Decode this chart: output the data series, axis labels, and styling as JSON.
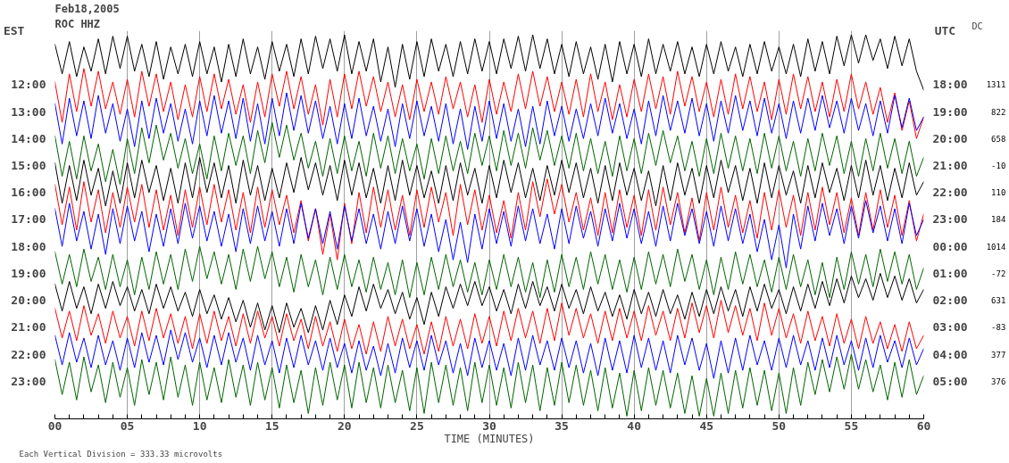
{
  "chart_data": [
    {
      "type": "line",
      "title": "Feb18,2005",
      "subtitle": "ROC HHZ",
      "xlabel": "TIME (MINUTES)",
      "ylabel": "EST",
      "y2label": "UTC",
      "annotations": [
        "Each Vertical Division = 333.33 microvolts"
      ],
      "grid": "x",
      "xlim": [
        0,
        60
      ],
      "xticks": [
        {
          "value": 0,
          "label": "00"
        },
        {
          "value": 1,
          "label": null
        },
        {
          "value": 2,
          "label": null
        },
        {
          "value": 3,
          "label": null
        },
        {
          "value": 4,
          "label": null
        },
        {
          "value": 5,
          "label": "05"
        },
        {
          "value": 6,
          "label": null
        },
        {
          "value": 7,
          "label": null
        },
        {
          "value": 8,
          "label": null
        },
        {
          "value": 9,
          "label": null
        },
        {
          "value": 10,
          "label": "10"
        },
        {
          "value": 11,
          "label": null
        },
        {
          "value": 12,
          "label": null
        },
        {
          "value": 13,
          "label": null
        },
        {
          "value": 14,
          "label": null
        },
        {
          "value": 15,
          "label": "15"
        },
        {
          "value": 16,
          "label": null
        },
        {
          "value": 17,
          "label": null
        },
        {
          "value": 18,
          "label": null
        },
        {
          "value": 19,
          "label": null
        },
        {
          "value": 20,
          "label": "20"
        },
        {
          "value": 21,
          "label": null
        },
        {
          "value": 22,
          "label": null
        },
        {
          "value": 23,
          "label": null
        },
        {
          "value": 24,
          "label": null
        },
        {
          "value": 25,
          "label": "25"
        },
        {
          "value": 26,
          "label": null
        },
        {
          "value": 27,
          "label": null
        },
        {
          "value": 28,
          "label": null
        },
        {
          "value": 29,
          "label": null
        },
        {
          "value": 30,
          "label": "30"
        },
        {
          "value": 31,
          "label": null
        },
        {
          "value": 32,
          "label": null
        },
        {
          "value": 33,
          "label": null
        },
        {
          "value": 34,
          "label": null
        },
        {
          "value": 35,
          "label": "35"
        },
        {
          "value": 36,
          "label": null
        },
        {
          "value": 37,
          "label": null
        },
        {
          "value": 38,
          "label": null
        },
        {
          "value": 39,
          "label": null
        },
        {
          "value": 40,
          "label": "40"
        },
        {
          "value": 41,
          "label": null
        },
        {
          "value": 42,
          "label": null
        },
        {
          "value": 43,
          "label": null
        },
        {
          "value": 44,
          "label": null
        },
        {
          "value": 45,
          "label": "45"
        },
        {
          "value": 46,
          "label": null
        },
        {
          "value": 47,
          "label": null
        },
        {
          "value": 48,
          "label": null
        },
        {
          "value": 49,
          "label": null
        },
        {
          "value": 50,
          "label": "50"
        },
        {
          "value": 51,
          "label": null
        },
        {
          "value": 52,
          "label": null
        },
        {
          "value": 53,
          "label": null
        },
        {
          "value": 54,
          "label": null
        },
        {
          "value": 55,
          "label": "55"
        },
        {
          "value": 56,
          "label": null
        },
        {
          "value": 57,
          "label": null
        },
        {
          "value": 58,
          "label": null
        },
        {
          "value": 59,
          "label": null
        },
        {
          "value": 60,
          "label": "60"
        }
      ],
      "ylim": [
        24.4,
        10.0
      ],
      "yticks": [
        {
          "value": 12,
          "label": "12:00"
        },
        {
          "value": 13,
          "label": "13:00"
        },
        {
          "value": 14,
          "label": "14:00"
        },
        {
          "value": 15,
          "label": "15:00"
        },
        {
          "value": 16,
          "label": "16:00"
        },
        {
          "value": 17,
          "label": "17:00"
        },
        {
          "value": 18,
          "label": "18:00"
        },
        {
          "value": 19,
          "label": "19:00"
        },
        {
          "value": 20,
          "label": "20:00"
        },
        {
          "value": 21,
          "label": "21:00"
        },
        {
          "value": 22,
          "label": "22:00"
        },
        {
          "value": 23,
          "label": "23:00"
        }
      ],
      "y2lim": [
        "2005-02-19T06:24",
        "2005-02-18T16:00"
      ],
      "y2ticks": [
        {
          "value": "2005-02-18T18:00",
          "label": "18:00"
        },
        {
          "value": "2005-02-18T19:00",
          "label": "19:00"
        },
        {
          "value": "2005-02-18T20:00",
          "label": "20:00"
        },
        {
          "value": "2005-02-18T21:00",
          "label": "21:00"
        },
        {
          "value": "2005-02-18T22:00",
          "label": "22:00"
        },
        {
          "value": "2005-02-18T23:00",
          "label": "23:00"
        },
        {
          "value": "2005-02-19T00:00",
          "label": "00:00"
        },
        {
          "value": "2005-02-19T01:00",
          "label": "01:00"
        },
        {
          "value": "2005-02-19T02:00",
          "label": "02:00"
        },
        {
          "value": "2005-02-19T03:00",
          "label": "03:00"
        },
        {
          "value": "2005-02-19T04:00",
          "label": "04:00"
        },
        {
          "value": "2005-02-19T05:00",
          "label": "05:00"
        }
      ],
      "x": [
        0,
        0.5,
        1,
        1.5,
        2,
        2.5,
        3,
        3.5,
        4,
        4.5,
        5,
        5.5,
        6,
        6.5,
        7,
        7.5,
        8,
        8.5,
        9,
        9.5,
        10,
        10.5,
        11,
        11.5,
        12,
        12.5,
        13,
        13.5,
        14,
        14.5,
        15,
        15.5,
        16,
        16.5,
        17,
        17.5,
        18,
        18.5,
        19,
        19.5,
        20,
        20.5,
        21,
        21.5,
        22,
        22.5,
        23,
        23.5,
        24,
        24.5,
        25,
        25.5,
        26,
        26.5,
        27,
        27.5,
        28,
        28.5,
        29,
        29.5,
        30,
        30.5,
        31,
        31.5,
        32,
        32.5,
        33,
        33.5,
        34,
        34.5,
        35,
        35.5,
        36,
        36.5,
        37,
        37.5,
        38,
        38.5,
        39,
        39.5,
        40,
        40.5,
        41,
        41.5,
        42,
        42.5,
        43,
        43.5,
        44,
        44.5,
        45,
        45.5,
        46,
        46.5,
        47,
        47.5,
        48,
        48.5,
        49,
        49.5,
        50,
        50.5,
        51,
        51.5,
        52,
        52.5,
        53,
        53.5,
        54,
        54.5,
        55,
        55.5,
        56,
        56.5,
        57,
        57.5,
        58,
        58.5,
        59,
        59.5,
        60
      ],
      "series": [
        {
          "color": "#000000",
          "values": [
            10.5,
            11.6,
            10.4,
            11.7,
            10.6,
            11.5,
            10.3,
            11.6,
            10.2,
            11.4,
            10.2,
            11.5,
            10.5,
            11.7,
            10.4,
            11.8,
            10.6,
            11.6,
            10.5,
            11.7,
            10.4,
            11.6,
            10.6,
            11.9,
            10.5,
            11.7,
            10.3,
            11.6,
            10.6,
            11.8,
            10.4,
            11.5,
            10.5,
            11.7,
            10.3,
            11.6,
            10.2,
            11.4,
            10.3,
            11.5,
            10.15,
            11.6,
            10.4,
            11.5,
            10.3,
            11.9,
            10.6,
            12.1,
            10.5,
            11.8,
            10.4,
            11.7,
            10.3,
            11.5,
            10.5,
            11.7,
            10.4,
            11.6,
            10.3,
            11.5,
            10.4,
            11.6,
            10.3,
            11.4,
            10.2,
            11.5,
            10.15,
            11.4,
            10.3,
            11.6,
            10.5,
            11.7,
            10.4,
            11.6,
            10.6,
            11.8,
            10.5,
            11.9,
            10.4,
            11.6,
            10.5,
            11.7,
            10.3,
            11.6,
            10.5,
            11.5,
            10.4,
            11.6,
            10.6,
            11.7,
            10.5,
            11.6,
            10.4,
            11.5,
            10.6,
            11.7,
            10.5,
            11.6,
            10.4,
            11.5,
            10.6,
            11.6,
            10.5,
            11.7,
            10.3,
            11.5,
            10.4,
            11.6,
            10.2,
            11.3,
            10.15,
            11.2,
            10.15,
            11.1,
            10.3,
            11.4,
            10.2,
            11.3,
            10.3,
            11.5,
            12.2
          ]
        },
        {
          "color": "#ff0000",
          "values": [
            11.9,
            13.4,
            11.6,
            13.0,
            11.4,
            12.8,
            11.5,
            12.9,
            11.9,
            13.1,
            11.8,
            13.2,
            11.5,
            12.8,
            11.6,
            13.0,
            11.9,
            13.3,
            12.0,
            13.2,
            11.7,
            13.0,
            11.6,
            12.9,
            11.8,
            13.1,
            12.0,
            13.4,
            11.9,
            13.2,
            11.6,
            12.8,
            11.5,
            12.9,
            11.7,
            13.1,
            12.0,
            13.5,
            11.8,
            13.2,
            11.6,
            12.9,
            11.5,
            12.8,
            11.7,
            13.0,
            11.9,
            13.2,
            12.0,
            13.3,
            11.8,
            13.0,
            11.9,
            13.1,
            11.7,
            12.9,
            11.9,
            13.2,
            12.0,
            13.4,
            11.8,
            13.1,
            11.9,
            13.0,
            11.6,
            12.9,
            11.5,
            12.8,
            11.7,
            13.0,
            11.9,
            13.1,
            11.8,
            13.2,
            11.6,
            13.0,
            11.9,
            13.3,
            12.0,
            13.2,
            11.8,
            13.0,
            11.6,
            12.9,
            11.7,
            13.1,
            11.5,
            12.8,
            11.7,
            13.0,
            11.9,
            13.2,
            11.8,
            13.1,
            11.6,
            12.9,
            11.7,
            13.0,
            11.9,
            13.3,
            11.8,
            13.1,
            11.6,
            12.9,
            11.7,
            13.0,
            11.9,
            13.2,
            11.8,
            13.0,
            11.6,
            12.9,
            11.9,
            13.1,
            12.1,
            13.4,
            12.3,
            13.7,
            12.6,
            14.0,
            13.2
          ]
        },
        {
          "color": "#0000ff",
          "values": [
            12.7,
            14.2,
            12.5,
            13.9,
            12.6,
            14.0,
            12.4,
            13.8,
            12.7,
            14.1,
            12.9,
            14.3,
            12.6,
            14.0,
            12.5,
            13.8,
            12.7,
            14.1,
            12.9,
            14.2,
            12.6,
            13.9,
            12.4,
            13.8,
            12.6,
            14.0,
            12.5,
            14.1,
            12.7,
            14.2,
            12.5,
            13.9,
            12.3,
            13.7,
            12.4,
            13.8,
            12.6,
            14.0,
            12.8,
            14.2,
            12.7,
            14.0,
            12.5,
            13.9,
            12.8,
            14.1,
            12.9,
            14.3,
            12.7,
            14.0,
            12.6,
            13.9,
            12.8,
            14.1,
            12.7,
            14.2,
            12.9,
            14.4,
            12.8,
            14.1,
            12.6,
            14.0,
            12.7,
            14.1,
            12.9,
            14.3,
            12.8,
            14.2,
            12.6,
            13.9,
            12.8,
            14.1,
            12.9,
            14.0,
            12.7,
            13.9,
            12.5,
            13.8,
            12.7,
            14.0,
            12.9,
            14.2,
            12.6,
            13.9,
            12.4,
            13.7,
            12.6,
            13.8,
            12.5,
            13.9,
            12.7,
            14.1,
            12.6,
            13.8,
            12.4,
            13.7,
            12.6,
            13.9,
            12.5,
            13.8,
            12.7,
            14.0,
            12.6,
            13.8,
            12.5,
            13.7,
            12.4,
            13.6,
            12.6,
            13.8,
            12.5,
            13.7,
            12.7,
            13.9,
            12.6,
            13.8,
            12.4,
            13.6,
            12.5,
            13.7,
            13.2
          ]
        },
        {
          "color": "#006400",
          "values": [
            13.9,
            15.4,
            14.1,
            15.5,
            13.9,
            15.2,
            14.2,
            15.6,
            14.4,
            15.7,
            14.0,
            15.3,
            13.6,
            14.9,
            13.5,
            14.8,
            13.8,
            15.1,
            14.0,
            15.3,
            14.2,
            15.5,
            13.9,
            15.2,
            13.8,
            15.0,
            13.9,
            15.3,
            13.7,
            14.9,
            13.4,
            14.7,
            13.5,
            14.8,
            13.8,
            15.1,
            14.1,
            15.4,
            14.0,
            15.3,
            13.9,
            15.2,
            14.1,
            15.4,
            13.8,
            15.1,
            13.9,
            15.3,
            14.0,
            15.2,
            14.2,
            15.5,
            14.0,
            15.3,
            13.9,
            15.2,
            14.1,
            15.3,
            13.8,
            15.0,
            13.9,
            15.2,
            13.7,
            15.0,
            13.8,
            15.1,
            13.6,
            14.8,
            13.7,
            15.0,
            13.9,
            15.1,
            13.8,
            15.2,
            14.0,
            15.3,
            14.1,
            15.4,
            13.9,
            15.2,
            14.0,
            15.3,
            13.8,
            15.0,
            13.7,
            14.9,
            13.9,
            15.2,
            14.1,
            15.4,
            14.0,
            15.3,
            13.8,
            15.1,
            13.9,
            15.2,
            14.0,
            15.3,
            13.8,
            15.1,
            13.9,
            15.2,
            14.1,
            15.4,
            14.0,
            15.2,
            13.8,
            15.0,
            13.9,
            15.3,
            14.1,
            15.4,
            14.0,
            15.2,
            13.8,
            15.1,
            14.0,
            15.3,
            14.1,
            15.4,
            14.7
          ]
        },
        {
          "color": "#000000",
          "values": [
            14.9,
            16.4,
            15.0,
            16.3,
            14.8,
            16.1,
            15.1,
            16.5,
            15.2,
            16.4,
            14.9,
            16.2,
            14.8,
            16.0,
            15.0,
            16.3,
            15.1,
            16.4,
            14.9,
            16.2,
            14.7,
            16.0,
            14.9,
            16.2,
            15.0,
            16.4,
            14.8,
            16.1,
            15.0,
            16.3,
            15.1,
            16.2,
            14.9,
            16.0,
            14.7,
            15.9,
            14.9,
            16.1,
            15.0,
            16.3,
            14.8,
            16.1,
            14.9,
            16.2,
            15.1,
            16.4,
            15.0,
            16.3,
            14.8,
            16.1,
            15.0,
            16.2,
            15.2,
            16.4,
            15.0,
            16.3,
            14.9,
            16.1,
            15.1,
            16.4,
            15.0,
            16.2,
            14.8,
            16.0,
            14.9,
            16.2,
            15.1,
            16.3,
            15.0,
            16.1,
            14.8,
            16.0,
            14.9,
            16.2,
            15.1,
            16.4,
            15.0,
            16.3,
            14.9,
            16.1,
            15.1,
            16.3,
            15.2,
            16.5,
            15.0,
            16.3,
            14.9,
            16.1,
            15.1,
            16.4,
            15.0,
            16.2,
            14.8,
            16.0,
            15.0,
            16.3,
            15.1,
            16.4,
            14.9,
            16.2,
            15.0,
            16.1,
            15.2,
            16.4,
            15.0,
            16.2,
            14.9,
            16.0,
            15.1,
            16.3,
            15.0,
            16.2,
            14.8,
            16.1,
            15.0,
            16.3,
            15.1,
            16.2,
            14.9,
            16.1,
            15.6
          ]
        },
        {
          "color": "#ff0000",
          "values": [
            15.7,
            17.2,
            15.8,
            17.4,
            15.6,
            17.1,
            15.9,
            17.5,
            16.0,
            17.3,
            15.8,
            17.1,
            15.7,
            17.3,
            15.9,
            17.4,
            16.1,
            17.6,
            15.9,
            17.3,
            15.8,
            17.2,
            15.7,
            17.1,
            15.9,
            17.4,
            16.0,
            17.5,
            15.8,
            17.3,
            15.9,
            17.2,
            16.1,
            17.5,
            16.3,
            17.8,
            16.6,
            18.3,
            16.8,
            18.5,
            16.4,
            17.9,
            16.0,
            17.5,
            15.8,
            17.3,
            15.9,
            17.4,
            16.1,
            17.6,
            15.9,
            17.3,
            15.8,
            17.1,
            16.0,
            17.6,
            15.7,
            17.2,
            15.9,
            17.4,
            16.1,
            17.5,
            16.3,
            17.7,
            16.0,
            17.4,
            15.6,
            16.9,
            15.5,
            16.8,
            15.7,
            17.1,
            16.0,
            17.4,
            16.2,
            17.6,
            16.0,
            17.5,
            15.9,
            17.3,
            16.1,
            17.6,
            15.9,
            17.4,
            15.8,
            17.2,
            16.0,
            17.5,
            16.2,
            17.8,
            16.0,
            17.4,
            15.8,
            17.3,
            16.1,
            17.5,
            16.3,
            17.7,
            16.0,
            17.4,
            15.9,
            17.3,
            16.1,
            17.6,
            16.0,
            17.4,
            15.8,
            17.2,
            16.0,
            17.5,
            16.2,
            17.6,
            16.0,
            17.4,
            15.9,
            17.3,
            16.1,
            17.6,
            16.3,
            17.8,
            16.8
          ]
        },
        {
          "color": "#0000ff",
          "values": [
            16.6,
            18.0,
            16.4,
            17.8,
            16.7,
            18.1,
            16.8,
            18.3,
            16.6,
            17.9,
            16.5,
            17.8,
            16.7,
            18.2,
            16.8,
            18.0,
            16.6,
            17.9,
            16.4,
            17.7,
            16.5,
            17.8,
            16.7,
            18.0,
            16.8,
            18.2,
            16.6,
            17.9,
            16.5,
            17.8,
            16.7,
            18.0,
            16.6,
            17.9,
            16.4,
            17.7,
            16.6,
            17.9,
            16.7,
            18.1,
            16.5,
            17.8,
            16.6,
            17.9,
            16.8,
            18.1,
            16.7,
            17.9,
            16.5,
            17.8,
            16.6,
            18.0,
            16.8,
            18.2,
            17.0,
            18.5,
            17.1,
            18.6,
            16.8,
            18.1,
            16.6,
            17.9,
            16.7,
            18.0,
            16.5,
            17.8,
            16.6,
            17.9,
            16.8,
            18.1,
            16.6,
            17.9,
            16.5,
            17.7,
            16.7,
            18.0,
            16.6,
            17.8,
            16.4,
            17.7,
            16.6,
            17.9,
            16.7,
            18.0,
            16.5,
            17.8,
            16.4,
            17.6,
            16.6,
            17.9,
            16.7,
            18.0,
            16.5,
            17.8,
            16.6,
            17.9,
            16.8,
            18.2,
            17.0,
            18.5,
            17.2,
            18.8,
            16.8,
            18.1,
            16.5,
            17.8,
            16.4,
            17.6,
            16.6,
            17.9,
            16.5,
            17.7,
            16.3,
            17.5,
            16.5,
            17.8,
            16.6,
            17.9,
            16.4,
            17.6,
            17.0
          ]
        },
        {
          "color": "#006400",
          "values": [
            18.2,
            19.4,
            18.3,
            19.5,
            18.1,
            19.3,
            18.4,
            19.6,
            18.3,
            19.5,
            18.5,
            19.8,
            18.4,
            19.6,
            18.2,
            19.4,
            18.3,
            19.6,
            18.1,
            19.3,
            18.0,
            19.2,
            18.2,
            19.4,
            18.3,
            19.6,
            18.1,
            19.3,
            18.0,
            19.2,
            18.2,
            19.5,
            18.4,
            19.7,
            18.3,
            19.5,
            18.5,
            19.8,
            18.4,
            19.6,
            18.3,
            19.5,
            18.5,
            19.7,
            18.4,
            19.6,
            18.6,
            19.8,
            18.5,
            19.9,
            18.6,
            19.8,
            18.4,
            19.6,
            18.3,
            19.5,
            18.5,
            19.7,
            18.6,
            19.8,
            18.5,
            19.6,
            18.3,
            19.5,
            18.4,
            19.7,
            18.6,
            19.9,
            18.5,
            19.7,
            18.3,
            19.5,
            18.4,
            19.6,
            18.2,
            19.4,
            18.3,
            19.6,
            18.5,
            19.7,
            18.4,
            19.6,
            18.2,
            19.4,
            18.3,
            19.5,
            18.1,
            19.3,
            18.3,
            19.6,
            18.5,
            19.8,
            18.4,
            19.6,
            18.2,
            19.4,
            18.3,
            19.5,
            18.5,
            19.7,
            18.4,
            19.6,
            18.3,
            19.5,
            18.5,
            19.8,
            18.6,
            19.9,
            18.4,
            19.6,
            18.2,
            19.4,
            18.3,
            19.5,
            18.1,
            19.3,
            18.2,
            19.4,
            18.3,
            19.6,
            18.8
          ]
        },
        {
          "color": "#000000",
          "values": [
            19.4,
            20.4,
            19.3,
            20.3,
            19.5,
            20.5,
            19.4,
            20.3,
            19.3,
            20.2,
            19.5,
            20.4,
            19.6,
            20.5,
            19.4,
            20.3,
            19.5,
            20.4,
            19.7,
            20.6,
            19.6,
            20.5,
            19.8,
            20.7,
            19.9,
            20.8,
            20.0,
            21.0,
            20.1,
            21.1,
            20.2,
            21.2,
            20.1,
            21.0,
            20.3,
            21.2,
            20.2,
            21.1,
            20.0,
            20.9,
            19.8,
            20.6,
            19.5,
            20.4,
            19.4,
            20.3,
            19.6,
            20.5,
            19.7,
            20.7,
            19.9,
            20.9,
            19.7,
            20.6,
            19.5,
            20.3,
            19.4,
            20.2,
            19.3,
            20.2,
            19.5,
            20.4,
            19.6,
            20.5,
            19.4,
            20.3,
            19.3,
            20.2,
            19.5,
            20.4,
            19.4,
            20.3,
            19.6,
            20.5,
            19.5,
            20.4,
            19.7,
            20.6,
            19.8,
            20.7,
            19.6,
            20.5,
            19.7,
            20.6,
            19.6,
            20.5,
            19.8,
            20.7,
            19.7,
            20.6,
            19.6,
            20.5,
            19.5,
            20.4,
            19.6,
            20.6,
            19.5,
            20.4,
            19.4,
            20.3,
            19.6,
            20.5,
            19.5,
            20.4,
            19.4,
            20.3,
            19.3,
            20.2,
            19.2,
            20.1,
            19.1,
            19.9,
            19.2,
            20.0,
            19.0,
            19.9,
            19.1,
            20.0,
            19.2,
            20.1,
            19.6
          ]
        },
        {
          "color": "#ff0000",
          "values": [
            20.3,
            21.4,
            20.4,
            21.5,
            20.2,
            21.3,
            20.5,
            21.6,
            20.4,
            21.4,
            20.6,
            21.7,
            20.4,
            21.5,
            20.3,
            21.4,
            20.5,
            21.6,
            20.6,
            21.8,
            20.5,
            21.6,
            20.4,
            21.5,
            20.6,
            21.7,
            20.5,
            21.6,
            20.4,
            21.4,
            20.6,
            21.7,
            20.5,
            21.5,
            20.7,
            21.8,
            20.6,
            21.7,
            20.8,
            21.9,
            20.7,
            21.8,
            20.9,
            22.0,
            20.8,
            21.9,
            20.6,
            21.7,
            20.7,
            21.8,
            20.9,
            22.0,
            20.8,
            21.9,
            20.6,
            21.7,
            20.7,
            21.8,
            20.5,
            21.6,
            20.6,
            21.7,
            20.4,
            21.5,
            20.3,
            21.4,
            20.4,
            21.6,
            20.3,
            21.5,
            20.1,
            21.3,
            20.3,
            21.4,
            20.5,
            21.6,
            20.4,
            21.5,
            20.3,
            21.4,
            20.4,
            21.5,
            20.2,
            21.3,
            20.4,
            21.5,
            20.3,
            21.4,
            20.1,
            21.2,
            20.2,
            21.4,
            20.0,
            21.2,
            20.2,
            21.3,
            20.3,
            21.5,
            20.1,
            21.3,
            20.3,
            21.4,
            20.5,
            21.6,
            20.4,
            21.5,
            20.6,
            21.7,
            20.5,
            21.6,
            20.7,
            21.8,
            20.6,
            21.6,
            20.8,
            21.8,
            20.9,
            21.9,
            20.8,
            21.8,
            21.3
          ]
        },
        {
          "color": "#0000ff",
          "values": [
            21.3,
            22.4,
            21.2,
            22.3,
            21.4,
            22.5,
            21.3,
            22.4,
            21.5,
            22.6,
            21.4,
            22.5,
            21.2,
            22.3,
            21.3,
            22.4,
            21.1,
            22.2,
            21.2,
            22.3,
            21.4,
            22.5,
            21.3,
            22.4,
            21.2,
            22.3,
            21.4,
            22.6,
            21.3,
            22.4,
            21.5,
            22.7,
            21.4,
            22.5,
            21.3,
            22.4,
            21.5,
            22.6,
            21.4,
            22.5,
            21.6,
            22.7,
            21.5,
            22.6,
            21.7,
            22.8,
            21.6,
            22.7,
            21.4,
            22.5,
            21.5,
            22.6,
            21.3,
            22.4,
            21.5,
            22.7,
            21.6,
            22.8,
            21.4,
            22.5,
            21.5,
            22.6,
            21.6,
            22.8,
            21.4,
            22.6,
            21.3,
            22.4,
            21.5,
            22.6,
            21.4,
            22.5,
            21.5,
            22.7,
            21.6,
            22.8,
            21.4,
            22.6,
            21.5,
            22.7,
            21.3,
            22.5,
            21.4,
            22.6,
            21.5,
            22.7,
            21.3,
            22.4,
            21.4,
            22.6,
            21.6,
            22.9,
            21.5,
            22.7,
            21.4,
            22.6,
            21.3,
            22.4,
            21.5,
            22.6,
            21.4,
            22.5,
            21.3,
            22.4,
            21.5,
            22.6,
            21.4,
            22.5,
            21.3,
            22.4,
            21.5,
            22.6,
            21.4,
            22.5,
            21.3,
            22.3,
            21.5,
            22.5,
            21.4,
            22.4,
            21.8
          ]
        },
        {
          "color": "#006400",
          "values": [
            22.2,
            23.5,
            22.3,
            23.7,
            22.1,
            23.4,
            22.4,
            23.8,
            22.3,
            23.6,
            22.5,
            23.9,
            22.2,
            23.5,
            22.3,
            23.7,
            22.1,
            23.6,
            22.4,
            23.9,
            22.3,
            23.7,
            22.5,
            23.8,
            22.2,
            23.6,
            22.4,
            23.9,
            22.3,
            23.7,
            22.5,
            24.0,
            22.4,
            23.8,
            22.6,
            24.2,
            22.5,
            23.9,
            22.3,
            23.7,
            22.4,
            24.0,
            22.3,
            23.8,
            22.5,
            24.0,
            22.4,
            23.8,
            22.6,
            24.1,
            22.5,
            24.2,
            22.3,
            23.8,
            22.4,
            23.9,
            22.5,
            24.1,
            22.3,
            23.8,
            22.4,
            23.9,
            22.5,
            24.0,
            22.3,
            23.8,
            22.4,
            24.1,
            22.5,
            23.9,
            22.3,
            23.8,
            22.4,
            23.9,
            22.6,
            24.1,
            22.5,
            24.0,
            22.7,
            24.3,
            22.6,
            24.1,
            22.5,
            23.9,
            22.6,
            24.0,
            22.7,
            24.2,
            22.8,
            24.3,
            22.9,
            24.3,
            22.7,
            24.2,
            22.6,
            24.0,
            22.5,
            23.9,
            22.6,
            24.1,
            22.7,
            24.2,
            22.5,
            23.9,
            22.3,
            23.5,
            22.2,
            23.4,
            22.1,
            23.3,
            22.0,
            23.3,
            22.2,
            23.4,
            22.4,
            23.7,
            22.3,
            23.6,
            22.2,
            23.5,
            22.8
          ]
        }
      ]
    },
    {
      "type": "other",
      "title": "DC",
      "annotations": [
        "1311",
        "822",
        "658",
        "-10",
        "110",
        "184",
        "1014",
        "-72",
        "631",
        "-83",
        "377",
        "376"
      ]
    }
  ]
}
